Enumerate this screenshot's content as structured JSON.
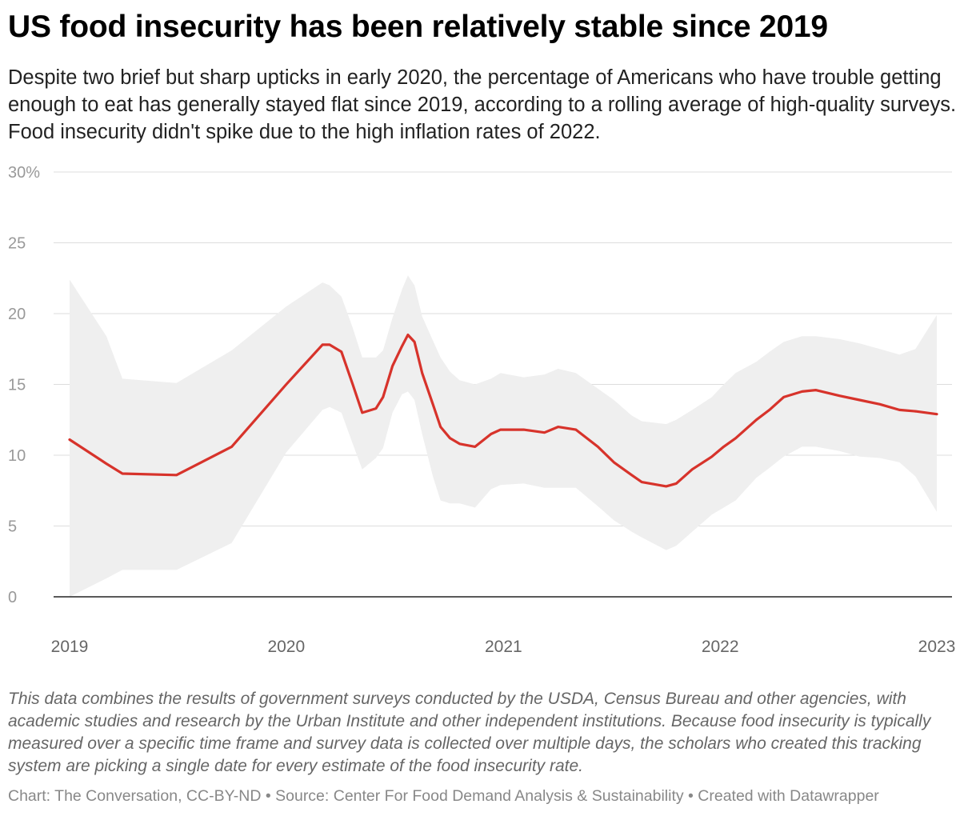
{
  "title": "US food insecurity has been relatively stable since 2019",
  "subtitle": "Despite two brief but sharp upticks in early 2020, the percentage of Americans who have trouble getting enough to eat has generally stayed flat since 2019, according to a rolling average of high-quality surveys. Food insecurity didn't spike due to the high inflation rates of 2022.",
  "notes": "This data combines the results of government surveys conducted by the USDA, Census Bureau and other agencies, with academic studies and research by the Urban Institute and other independent institutions. Because food insecurity is typically measured over a specific time frame and survey data is collected over multiple days, the scholars who created this tracking system are picking a single date for every estimate of the food insecurity rate.",
  "credits": "Chart: The Conversation, CC-BY-ND • Source: Center For Food Demand Analysis & Sustainability • Created with Datawrapper",
  "chart_data": {
    "type": "line",
    "xlim": [
      "2019-01-01",
      "2023-01-01"
    ],
    "ylim": [
      0,
      30
    ],
    "y_ticks": [
      0,
      5,
      10,
      15,
      20,
      25,
      30
    ],
    "y_tick_labels": [
      "0",
      "5",
      "10",
      "15",
      "20",
      "25",
      "30%"
    ],
    "x_ticks": [
      "2019-01-01",
      "2020-01-01",
      "2021-01-01",
      "2022-01-01",
      "2023-01-01"
    ],
    "x_tick_labels": [
      "2019",
      "2020",
      "2021",
      "2022",
      "2023"
    ],
    "grid": true,
    "colors": {
      "line": "#d7332b",
      "band": "#efefef",
      "grid": "#dddddd",
      "axis": "#222222"
    },
    "series": [
      {
        "type": "line-with-range",
        "points": [
          {
            "date": "2019-01-01",
            "value": 11.1,
            "low": 0.0,
            "high": 22.4
          },
          {
            "date": "2019-03-04",
            "value": 9.4,
            "low": 1.3,
            "high": 18.4
          },
          {
            "date": "2019-03-31",
            "value": 8.7,
            "low": 1.9,
            "high": 15.4
          },
          {
            "date": "2019-06-30",
            "value": 8.6,
            "low": 1.9,
            "high": 15.1
          },
          {
            "date": "2019-10-01",
            "value": 10.6,
            "low": 3.8,
            "high": 17.4
          },
          {
            "date": "2020-01-01",
            "value": 15.0,
            "low": 10.2,
            "high": 20.5
          },
          {
            "date": "2020-03-02",
            "value": 17.8,
            "low": 13.2,
            "high": 22.2
          },
          {
            "date": "2020-03-14",
            "value": 17.8,
            "low": 13.4,
            "high": 22.0
          },
          {
            "date": "2020-04-03",
            "value": 17.3,
            "low": 13.0,
            "high": 21.2
          },
          {
            "date": "2020-04-22",
            "value": 15.0,
            "low": 10.8,
            "high": 19.0
          },
          {
            "date": "2020-05-08",
            "value": 13.0,
            "low": 9.0,
            "high": 16.9
          },
          {
            "date": "2020-05-31",
            "value": 13.3,
            "low": 9.8,
            "high": 16.9
          },
          {
            "date": "2020-06-12",
            "value": 14.1,
            "low": 10.5,
            "high": 17.4
          },
          {
            "date": "2020-06-28",
            "value": 16.3,
            "low": 13.0,
            "high": 19.7
          },
          {
            "date": "2020-07-14",
            "value": 17.7,
            "low": 14.3,
            "high": 21.7
          },
          {
            "date": "2020-07-24",
            "value": 18.5,
            "low": 14.5,
            "high": 22.7
          },
          {
            "date": "2020-08-04",
            "value": 18.0,
            "low": 13.9,
            "high": 22.0
          },
          {
            "date": "2020-08-17",
            "value": 15.8,
            "low": 11.5,
            "high": 19.8
          },
          {
            "date": "2020-09-04",
            "value": 13.6,
            "low": 8.5,
            "high": 18.1
          },
          {
            "date": "2020-09-17",
            "value": 12.0,
            "low": 6.8,
            "high": 16.9
          },
          {
            "date": "2020-10-03",
            "value": 11.2,
            "low": 6.6,
            "high": 15.9
          },
          {
            "date": "2020-10-19",
            "value": 10.8,
            "low": 6.6,
            "high": 15.3
          },
          {
            "date": "2020-11-14",
            "value": 10.6,
            "low": 6.3,
            "high": 15.0
          },
          {
            "date": "2020-12-11",
            "value": 11.5,
            "low": 7.6,
            "high": 15.4
          },
          {
            "date": "2020-12-27",
            "value": 11.8,
            "low": 7.9,
            "high": 15.8
          },
          {
            "date": "2021-02-04",
            "value": 11.8,
            "low": 8.0,
            "high": 15.5
          },
          {
            "date": "2021-03-11",
            "value": 11.6,
            "low": 7.7,
            "high": 15.7
          },
          {
            "date": "2021-04-03",
            "value": 12.0,
            "low": 7.7,
            "high": 16.1
          },
          {
            "date": "2021-05-03",
            "value": 11.8,
            "low": 7.7,
            "high": 15.8
          },
          {
            "date": "2021-06-09",
            "value": 10.6,
            "low": 6.4,
            "high": 14.7
          },
          {
            "date": "2021-07-06",
            "value": 9.5,
            "low": 5.4,
            "high": 13.9
          },
          {
            "date": "2021-08-05",
            "value": 8.6,
            "low": 4.6,
            "high": 12.8
          },
          {
            "date": "2021-08-22",
            "value": 8.1,
            "low": 4.2,
            "high": 12.4
          },
          {
            "date": "2021-10-02",
            "value": 7.8,
            "low": 3.3,
            "high": 12.2
          },
          {
            "date": "2021-10-19",
            "value": 8.0,
            "low": 3.6,
            "high": 12.5
          },
          {
            "date": "2021-11-15",
            "value": 9.0,
            "low": 4.6,
            "high": 13.2
          },
          {
            "date": "2021-12-18",
            "value": 9.9,
            "low": 5.8,
            "high": 14.1
          },
          {
            "date": "2022-01-07",
            "value": 10.6,
            "low": 6.3,
            "high": 15.0
          },
          {
            "date": "2022-01-27",
            "value": 11.2,
            "low": 6.8,
            "high": 15.8
          },
          {
            "date": "2022-03-03",
            "value": 12.5,
            "low": 8.4,
            "high": 16.6
          },
          {
            "date": "2022-03-25",
            "value": 13.2,
            "low": 9.1,
            "high": 17.3
          },
          {
            "date": "2022-04-18",
            "value": 14.1,
            "low": 9.9,
            "high": 18.0
          },
          {
            "date": "2022-05-19",
            "value": 14.5,
            "low": 10.6,
            "high": 18.4
          },
          {
            "date": "2022-06-11",
            "value": 14.6,
            "low": 10.6,
            "high": 18.4
          },
          {
            "date": "2022-07-21",
            "value": 14.2,
            "low": 10.3,
            "high": 18.2
          },
          {
            "date": "2022-08-24",
            "value": 13.9,
            "low": 9.9,
            "high": 17.9
          },
          {
            "date": "2022-09-27",
            "value": 13.6,
            "low": 9.8,
            "high": 17.5
          },
          {
            "date": "2022-10-30",
            "value": 13.2,
            "low": 9.5,
            "high": 17.1
          },
          {
            "date": "2022-11-26",
            "value": 13.1,
            "low": 8.5,
            "high": 17.5
          },
          {
            "date": "2023-01-01",
            "value": 12.9,
            "low": 6.0,
            "high": 19.9
          }
        ]
      }
    ]
  }
}
